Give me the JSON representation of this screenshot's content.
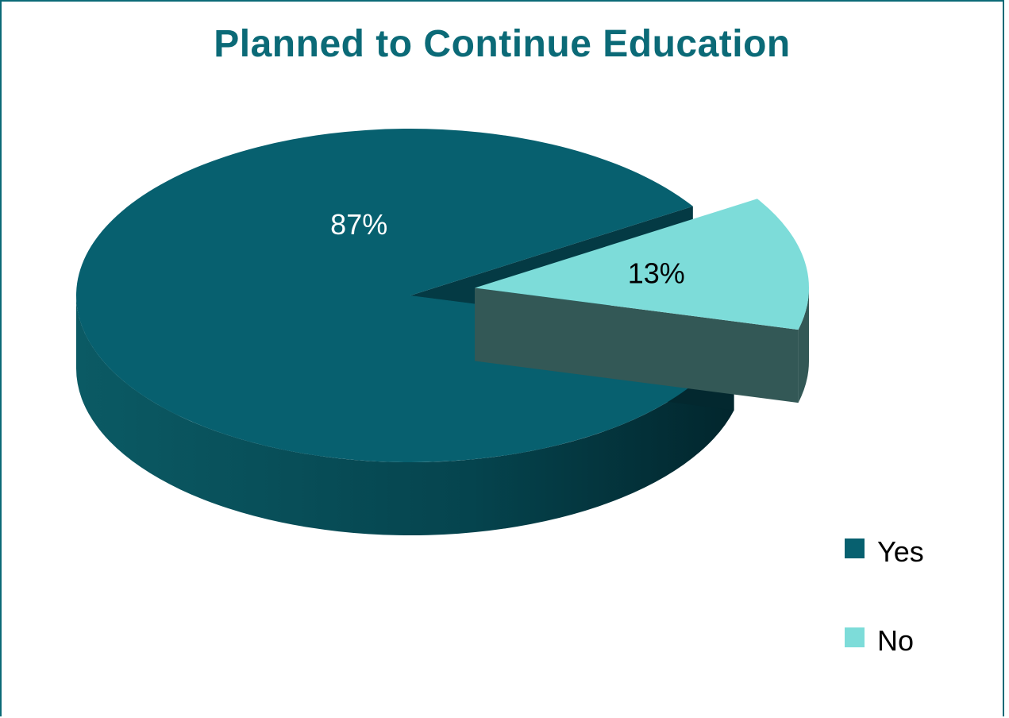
{
  "chart_data": {
    "type": "pie",
    "title": "Planned to Continue Education",
    "slices": [
      {
        "label": "Yes",
        "value": 87,
        "display": "87%",
        "color": "#07606f",
        "side_color": "#043a44",
        "label_color": "#ffffff"
      },
      {
        "label": "No",
        "value": 13,
        "display": "13%",
        "color": "#7ddcd9",
        "side_color": "#335856",
        "label_color": "#000000"
      }
    ],
    "exploded": "No",
    "three_d": true,
    "legend": {
      "placement": "right"
    }
  },
  "colors": {
    "title": "#0b6a77",
    "border": "#0b6a77"
  }
}
